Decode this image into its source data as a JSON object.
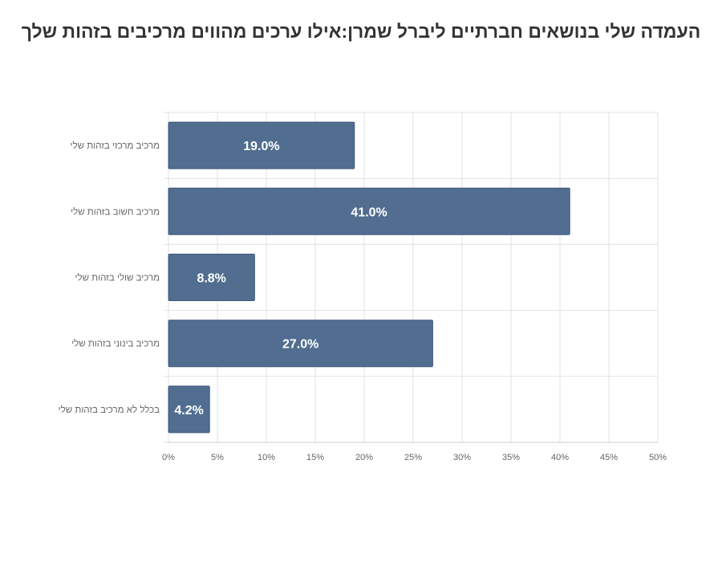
{
  "chart_data": {
    "type": "bar",
    "orientation": "horizontal",
    "title": "העמדה שלי בנושאים חברתיים ליברל  שמרן:אילו ערכים מהווים מרכיבים בזהות שלך",
    "categories": [
      "מרכיב מרכזי בזהות שלי",
      "מרכיב חשוב בזהות שלי",
      "מרכיב שולי בזהות שלי",
      "מרכיב בינוני בזהות שלי",
      "בכלל לא מרכיב בזהות שלי"
    ],
    "values": [
      19.0,
      41.0,
      8.8,
      27.0,
      4.2
    ],
    "data_labels": [
      "19.0%",
      "41.0%",
      "8.8%",
      "27.0%",
      "4.2%"
    ],
    "xlim": [
      0,
      50
    ],
    "x_ticks": [
      "0%",
      "5%",
      "10%",
      "15%",
      "20%",
      "25%",
      "30%",
      "35%",
      "40%",
      "45%",
      "50%"
    ],
    "x_tick_values": [
      0,
      5,
      10,
      15,
      20,
      25,
      30,
      35,
      40,
      45,
      50
    ],
    "xlabel": "",
    "ylabel": "",
    "grid": true,
    "legend": "none",
    "bar_color": "#516e90",
    "bar_edge_color": "#3f5878",
    "grid_color": "#e2e2e2",
    "label_color": "#666666",
    "data_label_color": "#ffffff"
  }
}
